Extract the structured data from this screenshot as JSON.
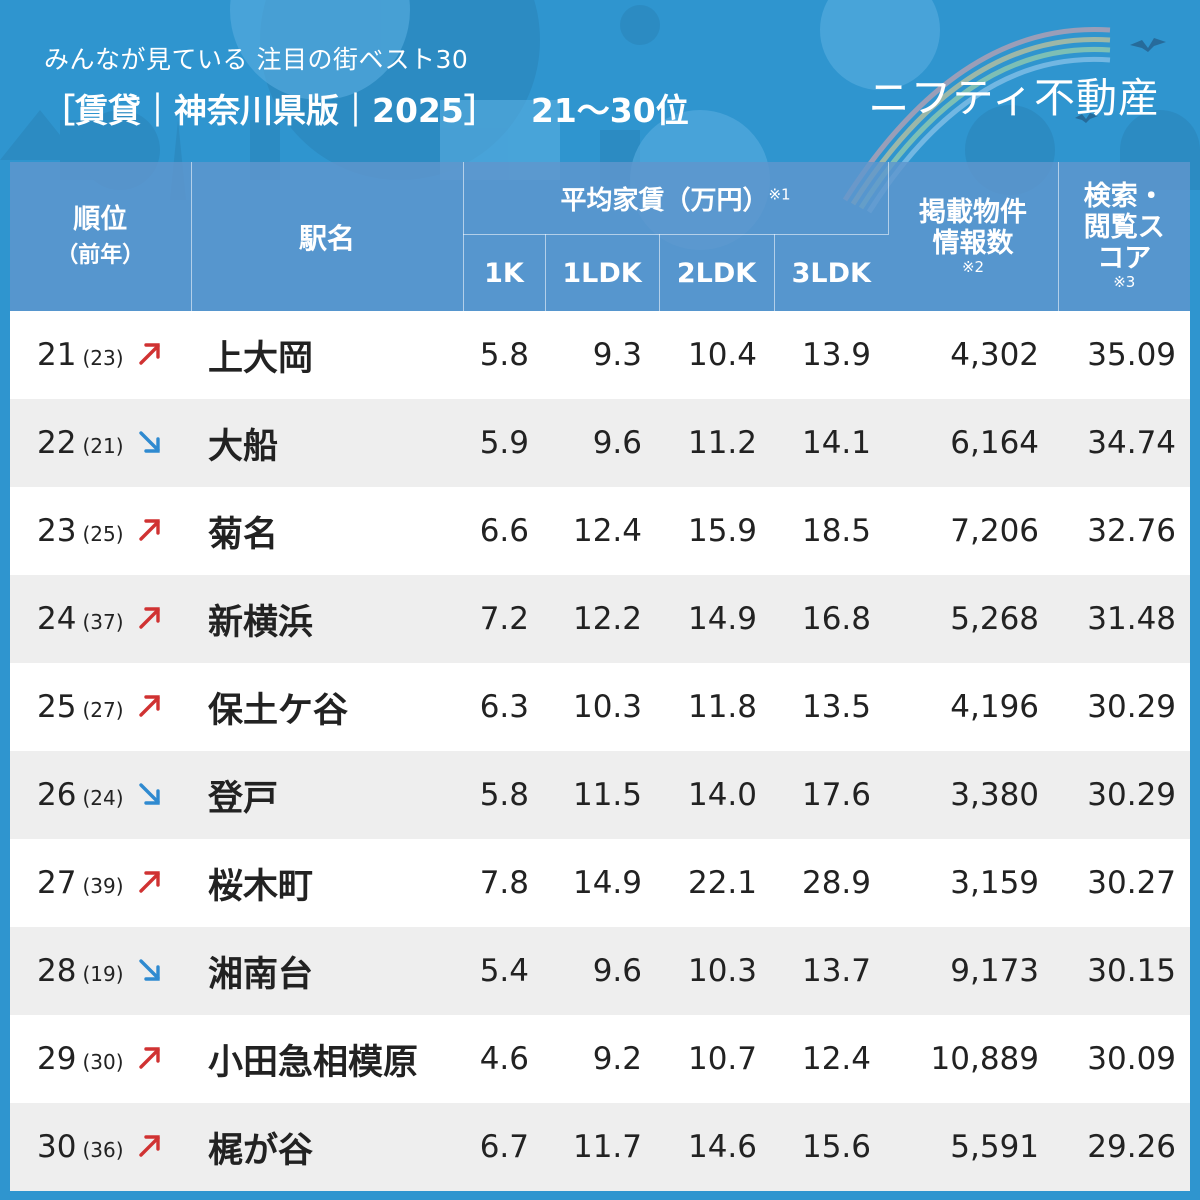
{
  "header": {
    "subtitle": "みんなが見ている 注目の街ベスト30",
    "title": "［賃貸｜神奈川県版｜2025］",
    "range": "21～30位",
    "brand": "ニフティ不動産"
  },
  "columns": {
    "rank": "順位",
    "rank_prev": "（前年）",
    "station": "駅名",
    "avg_rent": "平均家賃（万円）",
    "avg_rent_note": "※1",
    "k1": "1K",
    "ldk1": "1LDK",
    "ldk2": "2LDK",
    "ldk3": "3LDK",
    "listings": "掲載物件情報数",
    "listings_note": "※2",
    "score": "検索・閲覧スコア",
    "score_note": "※3"
  },
  "colors": {
    "up": "#d03232",
    "down": "#2f8ad0",
    "header_bg": "#5f96cd",
    "sky": "#2f95cf"
  },
  "rows": [
    {
      "rank": "21",
      "prev": "(23)",
      "trend": "up",
      "station": "上大岡",
      "k1": "5.8",
      "ldk1": "9.3",
      "ldk2": "10.4",
      "ldk3": "13.9",
      "listings": "4,302",
      "score": "35.09"
    },
    {
      "rank": "22",
      "prev": "(21)",
      "trend": "down",
      "station": "大船",
      "k1": "5.9",
      "ldk1": "9.6",
      "ldk2": "11.2",
      "ldk3": "14.1",
      "listings": "6,164",
      "score": "34.74"
    },
    {
      "rank": "23",
      "prev": "(25)",
      "trend": "up",
      "station": "菊名",
      "k1": "6.6",
      "ldk1": "12.4",
      "ldk2": "15.9",
      "ldk3": "18.5",
      "listings": "7,206",
      "score": "32.76"
    },
    {
      "rank": "24",
      "prev": "(37)",
      "trend": "up",
      "station": "新横浜",
      "k1": "7.2",
      "ldk1": "12.2",
      "ldk2": "14.9",
      "ldk3": "16.8",
      "listings": "5,268",
      "score": "31.48"
    },
    {
      "rank": "25",
      "prev": "(27)",
      "trend": "up",
      "station": "保土ケ谷",
      "k1": "6.3",
      "ldk1": "10.3",
      "ldk2": "11.8",
      "ldk3": "13.5",
      "listings": "4,196",
      "score": "30.29"
    },
    {
      "rank": "26",
      "prev": "(24)",
      "trend": "down",
      "station": "登戸",
      "k1": "5.8",
      "ldk1": "11.5",
      "ldk2": "14.0",
      "ldk3": "17.6",
      "listings": "3,380",
      "score": "30.29"
    },
    {
      "rank": "27",
      "prev": "(39)",
      "trend": "up",
      "station": "桜木町",
      "k1": "7.8",
      "ldk1": "14.9",
      "ldk2": "22.1",
      "ldk3": "28.9",
      "listings": "3,159",
      "score": "30.27"
    },
    {
      "rank": "28",
      "prev": "(19)",
      "trend": "down",
      "station": "湘南台",
      "k1": "5.4",
      "ldk1": "9.6",
      "ldk2": "10.3",
      "ldk3": "13.7",
      "listings": "9,173",
      "score": "30.15"
    },
    {
      "rank": "29",
      "prev": "(30)",
      "trend": "up",
      "station": "小田急相模原",
      "k1": "4.6",
      "ldk1": "9.2",
      "ldk2": "10.7",
      "ldk3": "12.4",
      "listings": "10,889",
      "score": "30.09"
    },
    {
      "rank": "30",
      "prev": "(36)",
      "trend": "up",
      "station": "梶が谷",
      "k1": "6.7",
      "ldk1": "11.7",
      "ldk2": "14.6",
      "ldk3": "15.6",
      "listings": "5,591",
      "score": "29.26"
    }
  ]
}
